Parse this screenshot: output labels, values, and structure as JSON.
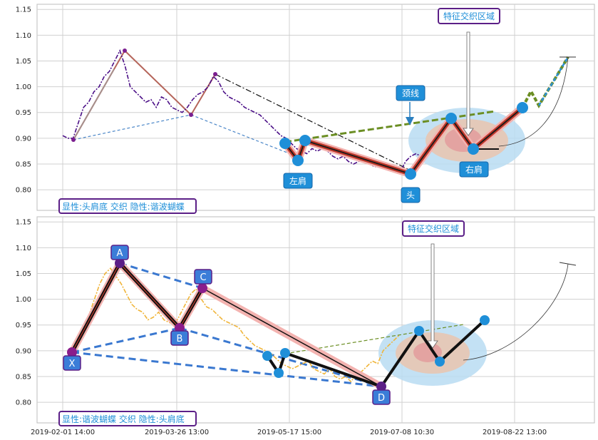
{
  "chart_data": [
    {
      "type": "line",
      "ylim": [
        0.76,
        1.16
      ],
      "yticks": [
        "0.80",
        "0.85",
        "0.90",
        "0.95",
        "1.00",
        "1.05",
        "1.10",
        "1.15"
      ],
      "grid": true,
      "annotations": {
        "feature_zone": "特征交织区域",
        "neckline": "颈线",
        "left_shoulder": "左肩",
        "head": "头",
        "right_shoulder": "右肩",
        "caption": "显性:头肩底 交织 隐性:谐波蝴蝶"
      },
      "pattern_points": {
        "left_shoulder": [
          0.89,
          0.86,
          0.9
        ],
        "head": 0.83,
        "right_shoulder": [
          0.94,
          0.88,
          0.96
        ]
      },
      "series": [
        {
          "values": [
            0.905,
            0.9,
            0.9,
            0.93,
            0.96,
            0.97,
            0.99,
            1.0,
            1.02,
            1.03,
            1.05,
            1.07,
            1.04,
            1.0,
            0.99,
            0.98,
            0.97,
            0.975,
            0.96,
            0.98,
            0.975,
            0.96,
            0.955,
            0.95,
            0.96,
            0.975,
            0.985,
            0.99,
            1.0,
            1.02,
            1.01,
            0.99,
            0.98,
            0.975,
            0.97,
            0.96,
            0.955,
            0.95,
            0.945,
            0.935,
            0.925,
            0.915,
            0.905,
            0.9,
            0.89,
            0.88,
            0.875,
            0.87,
            0.88,
            0.875,
            0.88,
            0.875,
            0.865,
            0.86,
            0.865,
            0.855,
            0.85,
            0.855,
            0.86,
            0.85,
            0.845,
            0.845,
            0.85,
            0.84,
            0.845,
            0.835,
            0.855,
            0.865,
            0.87,
            0.865,
            0.88,
            0.88,
            0.9,
            0.92
          ]
        }
      ]
    },
    {
      "type": "line",
      "ylim": [
        0.76,
        1.16
      ],
      "yticks": [
        "0.80",
        "0.85",
        "0.90",
        "0.95",
        "1.00",
        "1.05",
        "1.10",
        "1.15"
      ],
      "xticks": [
        "2019-02-01 14:00",
        "2019-03-26 13:00",
        "2019-05-17 15:00",
        "2019-07-08 10:30",
        "2019-08-22 13:00"
      ],
      "grid": true,
      "annotations": {
        "feature_zone": "特征交织区域",
        "X": "X",
        "A": "A",
        "B": "B",
        "C": "C",
        "D": "D",
        "caption": "显性:谐波蝴蝶 交织 隐性:头肩底"
      },
      "pattern_points": {
        "X": 0.9,
        "A": 1.07,
        "B": 0.945,
        "C": 1.025,
        "D": 0.83
      },
      "series": [
        {
          "values": [
            0.9,
            0.905,
            0.92,
            0.95,
            0.97,
            1.0,
            1.03,
            1.05,
            1.06,
            1.045,
            1.03,
            1.01,
            0.99,
            0.98,
            0.975,
            0.96,
            0.965,
            0.975,
            0.96,
            0.955,
            0.95,
            0.97,
            0.99,
            1.01,
            1.02,
            1.0,
            0.985,
            0.98,
            0.97,
            0.96,
            0.955,
            0.95,
            0.945,
            0.93,
            0.92,
            0.91,
            0.905,
            0.9,
            0.895,
            0.885,
            0.875,
            0.87,
            0.865,
            0.87,
            0.875,
            0.88,
            0.865,
            0.86,
            0.855,
            0.865,
            0.85,
            0.845,
            0.85,
            0.84,
            0.855,
            0.86,
            0.87,
            0.88,
            0.875,
            0.9,
            0.91,
            0.92,
            0.93
          ]
        }
      ]
    }
  ]
}
